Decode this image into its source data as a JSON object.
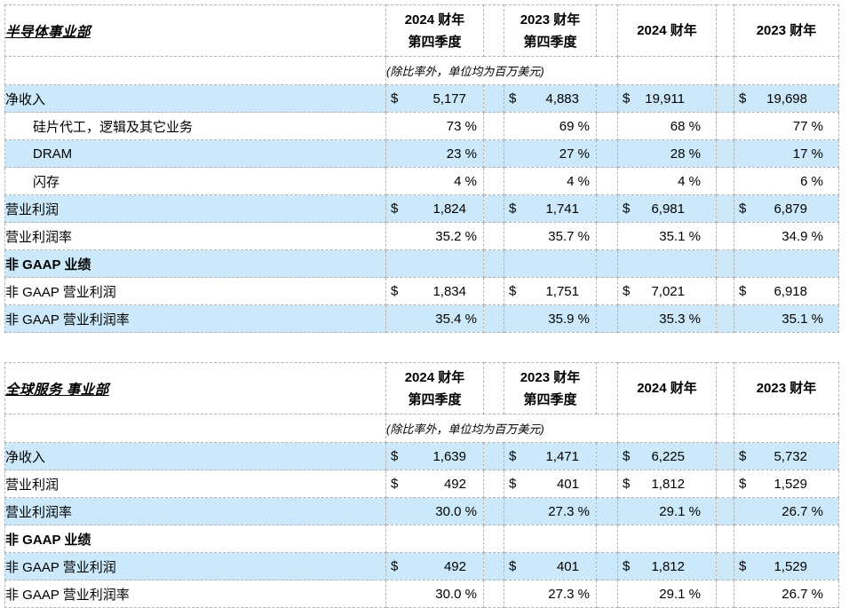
{
  "colors": {
    "row_highlight": "#cbe9fa",
    "border": "#b3b3b3",
    "text": "#000000"
  },
  "tables": [
    {
      "title": "半导体事业部",
      "headers": [
        "2024 财年\n第四季度",
        "2023 财年\n第四季度",
        "2024 财年",
        "2023 财年"
      ],
      "note": "(除比率外，单位均为百万美元)",
      "rows": [
        {
          "label": "净收入",
          "shaded": true,
          "cells": [
            {
              "cur": "$",
              "val": "5,177"
            },
            {
              "cur": "$",
              "val": "4,883"
            },
            {
              "cur": "$",
              "val": "19,911"
            },
            {
              "cur": "$",
              "val": "19,698"
            }
          ]
        },
        {
          "label": "硅片代工，逻辑及其它业务",
          "indent": true,
          "cells": [
            {
              "val": "73 %"
            },
            {
              "val": "69 %"
            },
            {
              "val": "68 %"
            },
            {
              "val": "77 %"
            }
          ]
        },
        {
          "label": "DRAM",
          "indent": true,
          "shaded": true,
          "cells": [
            {
              "val": "23 %"
            },
            {
              "val": "27 %"
            },
            {
              "val": "28 %"
            },
            {
              "val": "17 %"
            }
          ]
        },
        {
          "label": "闪存",
          "indent": true,
          "cells": [
            {
              "val": "4 %"
            },
            {
              "val": "4 %"
            },
            {
              "val": "4 %"
            },
            {
              "val": "6 %"
            }
          ]
        },
        {
          "label": "营业利润",
          "shaded": true,
          "cells": [
            {
              "cur": "$",
              "val": "1,824"
            },
            {
              "cur": "$",
              "val": "1,741"
            },
            {
              "cur": "$",
              "val": "6,981"
            },
            {
              "cur": "$",
              "val": "6,879"
            }
          ]
        },
        {
          "label": "营业利润率",
          "cells": [
            {
              "val": "35.2 %"
            },
            {
              "val": "35.7 %"
            },
            {
              "val": "35.1 %"
            },
            {
              "val": "34.9 %"
            }
          ]
        },
        {
          "label": "非 GAAP 业绩",
          "bold": true,
          "shaded": true,
          "cells": []
        },
        {
          "label": "非 GAAP 营业利润",
          "cells": [
            {
              "cur": "$",
              "val": "1,834"
            },
            {
              "cur": "$",
              "val": "1,751"
            },
            {
              "cur": "$",
              "val": "7,021"
            },
            {
              "cur": "$",
              "val": "6,918"
            }
          ]
        },
        {
          "label": "非 GAAP 营业利润率",
          "shaded": true,
          "cells": [
            {
              "val": "35.4 %"
            },
            {
              "val": "35.9 %"
            },
            {
              "val": "35.3 %"
            },
            {
              "val": "35.1 %"
            }
          ]
        }
      ]
    },
    {
      "title": "全球服务 事业部",
      "headers": [
        "2024 财年\n第四季度",
        "2023 财年\n第四季度",
        "2024 财年",
        "2023 财年"
      ],
      "note": "(除比率外，单位均为百万美元)",
      "rows": [
        {
          "label": "净收入",
          "shaded": true,
          "cells": [
            {
              "cur": "$",
              "val": "1,639"
            },
            {
              "cur": "$",
              "val": "1,471"
            },
            {
              "cur": "$",
              "val": "6,225"
            },
            {
              "cur": "$",
              "val": "5,732"
            }
          ]
        },
        {
          "label": "营业利润",
          "cells": [
            {
              "cur": "$",
              "val": "492"
            },
            {
              "cur": "$",
              "val": "401"
            },
            {
              "cur": "$",
              "val": "1,812"
            },
            {
              "cur": "$",
              "val": "1,529"
            }
          ]
        },
        {
          "label": "营业利润率",
          "shaded": true,
          "cells": [
            {
              "val": "30.0 %"
            },
            {
              "val": "27.3 %"
            },
            {
              "val": "29.1 %"
            },
            {
              "val": "26.7 %"
            }
          ]
        },
        {
          "label": "非 GAAP 业绩",
          "bold": true,
          "cells": []
        },
        {
          "label": "非 GAAP 营业利润",
          "shaded": true,
          "cells": [
            {
              "cur": "$",
              "val": "492"
            },
            {
              "cur": "$",
              "val": "401"
            },
            {
              "cur": "$",
              "val": "1,812"
            },
            {
              "cur": "$",
              "val": "1,529"
            }
          ]
        },
        {
          "label": "非 GAAP 营业利润率",
          "cells": [
            {
              "val": "30.0 %"
            },
            {
              "val": "27.3 %"
            },
            {
              "val": "29.1 %"
            },
            {
              "val": "26.7 %"
            }
          ]
        }
      ]
    }
  ]
}
